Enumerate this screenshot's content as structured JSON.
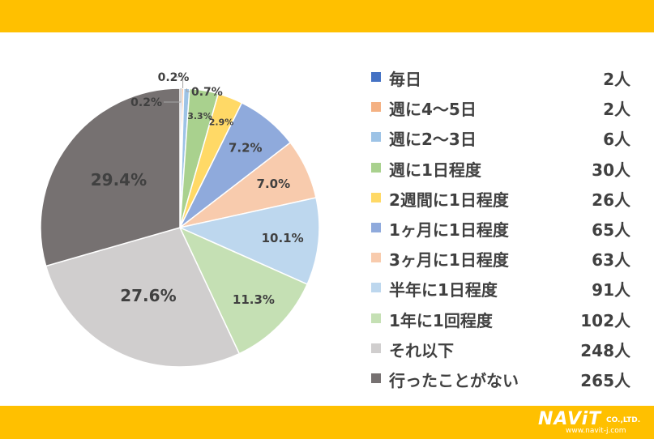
{
  "chart_data": {
    "type": "pie",
    "start_angle_deg": 0,
    "direction": "clockwise",
    "labels": [
      "毎日",
      "週に4〜5日",
      "週に2〜3日",
      "週に1日程度",
      "2週間に1日程度",
      "1ヶ月に1日程度",
      "3ヶ月に1日程度",
      "半年に1日程度",
      "1年に1回程度",
      "それ以下",
      "行ったことがない"
    ],
    "values": [
      2,
      2,
      6,
      30,
      26,
      65,
      63,
      91,
      102,
      248,
      265
    ],
    "count_labels": [
      "2人",
      "2人",
      "6人",
      "30人",
      "26人",
      "65人",
      "63人",
      "91人",
      "102人",
      "248人",
      "265人"
    ],
    "percent_labels": [
      "0.2%",
      "0.2%",
      "0.7%",
      "3.3%",
      "2.9%",
      "7.2%",
      "7.0%",
      "10.1%",
      "11.3%",
      "27.6%",
      "29.4%"
    ],
    "colors": [
      "#4472C4",
      "#F4B183",
      "#9DC3E6",
      "#A9D18E",
      "#FFD966",
      "#8FAADC",
      "#F8CBAD",
      "#BDD7EE",
      "#C5E0B4",
      "#D0CECE",
      "#767171"
    ],
    "legend_position": "right"
  },
  "logo": {
    "main": "NAViT",
    "co": "CO.,LTD.",
    "url": "www.navit-j.com"
  }
}
